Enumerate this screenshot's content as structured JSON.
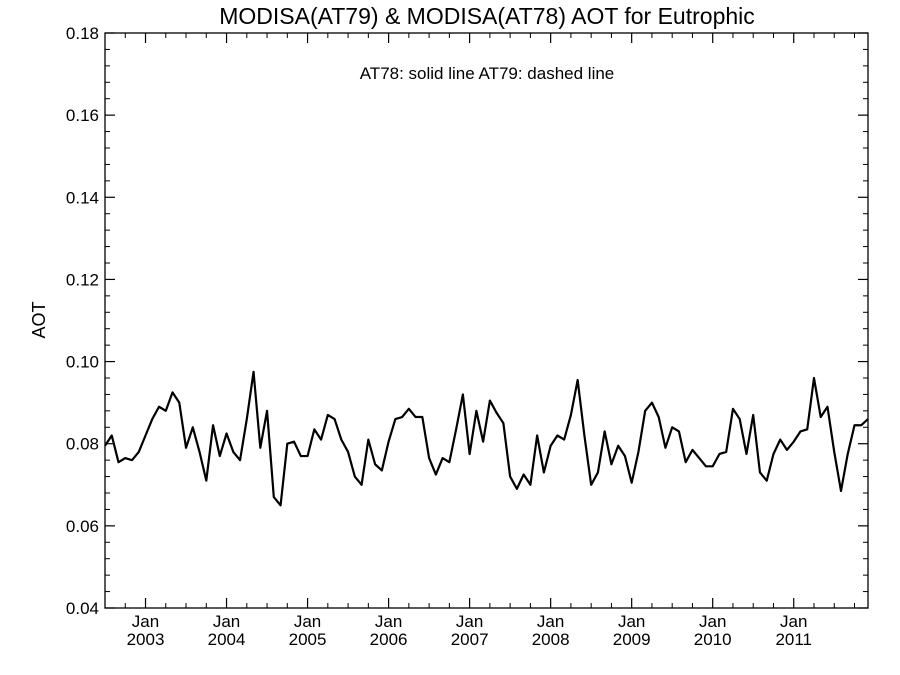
{
  "chart_data": {
    "type": "line",
    "title": "MODISA(AT79) & MODISA(AT78)  AOT for Eutrophic",
    "annotation": "AT78: solid line   AT79: dashed line",
    "ylabel": "AOT",
    "xlabel": "",
    "ylim": [
      0.04,
      0.18
    ],
    "yticks": [
      "0.04",
      "0.06",
      "0.08",
      "0.10",
      "0.12",
      "0.14",
      "0.16",
      "0.18"
    ],
    "xlim": [
      "2002-07",
      "2011-12"
    ],
    "xticks": [
      {
        "month": "Jan",
        "year": "2003"
      },
      {
        "month": "Jan",
        "year": "2004"
      },
      {
        "month": "Jan",
        "year": "2005"
      },
      {
        "month": "Jan",
        "year": "2006"
      },
      {
        "month": "Jan",
        "year": "2007"
      },
      {
        "month": "Jan",
        "year": "2008"
      },
      {
        "month": "Jan",
        "year": "2009"
      },
      {
        "month": "Jan",
        "year": "2010"
      },
      {
        "month": "Jan",
        "year": "2011"
      }
    ],
    "grid": false,
    "series": [
      {
        "style": "solid",
        "x": [
          "2002-07",
          "2002-08",
          "2002-09",
          "2002-10",
          "2002-11",
          "2002-12",
          "2003-01",
          "2003-02",
          "2003-03",
          "2003-04",
          "2003-05",
          "2003-06",
          "2003-07",
          "2003-08",
          "2003-09",
          "2003-10",
          "2003-11",
          "2003-12",
          "2004-01",
          "2004-02",
          "2004-03",
          "2004-04",
          "2004-05",
          "2004-06",
          "2004-07",
          "2004-08",
          "2004-09",
          "2004-10",
          "2004-11",
          "2004-12",
          "2005-01",
          "2005-02",
          "2005-03",
          "2005-04",
          "2005-05",
          "2005-06",
          "2005-07",
          "2005-08",
          "2005-09",
          "2005-10",
          "2005-11",
          "2005-12",
          "2006-01",
          "2006-02",
          "2006-03",
          "2006-04",
          "2006-05",
          "2006-06",
          "2006-07",
          "2006-08",
          "2006-09",
          "2006-10",
          "2006-11",
          "2006-12",
          "2007-01",
          "2007-02",
          "2007-03",
          "2007-04",
          "2007-05",
          "2007-06",
          "2007-07",
          "2007-08",
          "2007-09",
          "2007-10",
          "2007-11",
          "2007-12",
          "2008-01",
          "2008-02",
          "2008-03",
          "2008-04",
          "2008-05",
          "2008-06",
          "2008-07",
          "2008-08",
          "2008-09",
          "2008-10",
          "2008-11",
          "2008-12",
          "2009-01",
          "2009-02",
          "2009-03",
          "2009-04",
          "2009-05",
          "2009-06",
          "2009-07",
          "2009-08",
          "2009-09",
          "2009-10",
          "2009-11",
          "2009-12",
          "2010-01",
          "2010-02",
          "2010-03",
          "2010-04",
          "2010-05",
          "2010-06",
          "2010-07",
          "2010-08",
          "2010-09",
          "2010-10",
          "2010-11",
          "2010-12",
          "2011-01",
          "2011-02",
          "2011-03",
          "2011-04",
          "2011-05",
          "2011-06",
          "2011-07",
          "2011-08",
          "2011-09",
          "2011-10",
          "2011-11",
          "2011-12"
        ],
        "y": [
          0.0795,
          0.082,
          0.0755,
          0.0765,
          0.076,
          0.078,
          0.082,
          0.086,
          0.089,
          0.088,
          0.0925,
          0.09,
          0.079,
          0.084,
          0.078,
          0.071,
          0.0845,
          0.077,
          0.0825,
          0.078,
          0.076,
          0.086,
          0.0975,
          0.079,
          0.088,
          0.067,
          0.065,
          0.08,
          0.0805,
          0.077,
          0.077,
          0.0835,
          0.081,
          0.087,
          0.086,
          0.081,
          0.078,
          0.072,
          0.07,
          0.081,
          0.075,
          0.0735,
          0.0805,
          0.086,
          0.0865,
          0.0885,
          0.0865,
          0.0865,
          0.0765,
          0.0725,
          0.0765,
          0.0755,
          0.0835,
          0.092,
          0.0775,
          0.088,
          0.0805,
          0.0905,
          0.0875,
          0.085,
          0.072,
          0.069,
          0.0725,
          0.07,
          0.082,
          0.073,
          0.0795,
          0.082,
          0.081,
          0.087,
          0.0955,
          0.082,
          0.07,
          0.073,
          0.083,
          0.075,
          0.0795,
          0.077,
          0.0705,
          0.078,
          0.088,
          0.09,
          0.0865,
          0.079,
          0.084,
          0.083,
          0.0755,
          0.0785,
          0.0765,
          0.0745,
          0.0745,
          0.0775,
          0.078,
          0.0885,
          0.086,
          0.0775,
          0.087,
          0.073,
          0.071,
          0.0775,
          0.081,
          0.0785,
          0.0805,
          0.083,
          0.0835,
          0.096,
          0.0865,
          0.089,
          0.078,
          0.0685,
          0.0775,
          0.0845,
          0.0845,
          0.086
        ]
      }
    ]
  }
}
